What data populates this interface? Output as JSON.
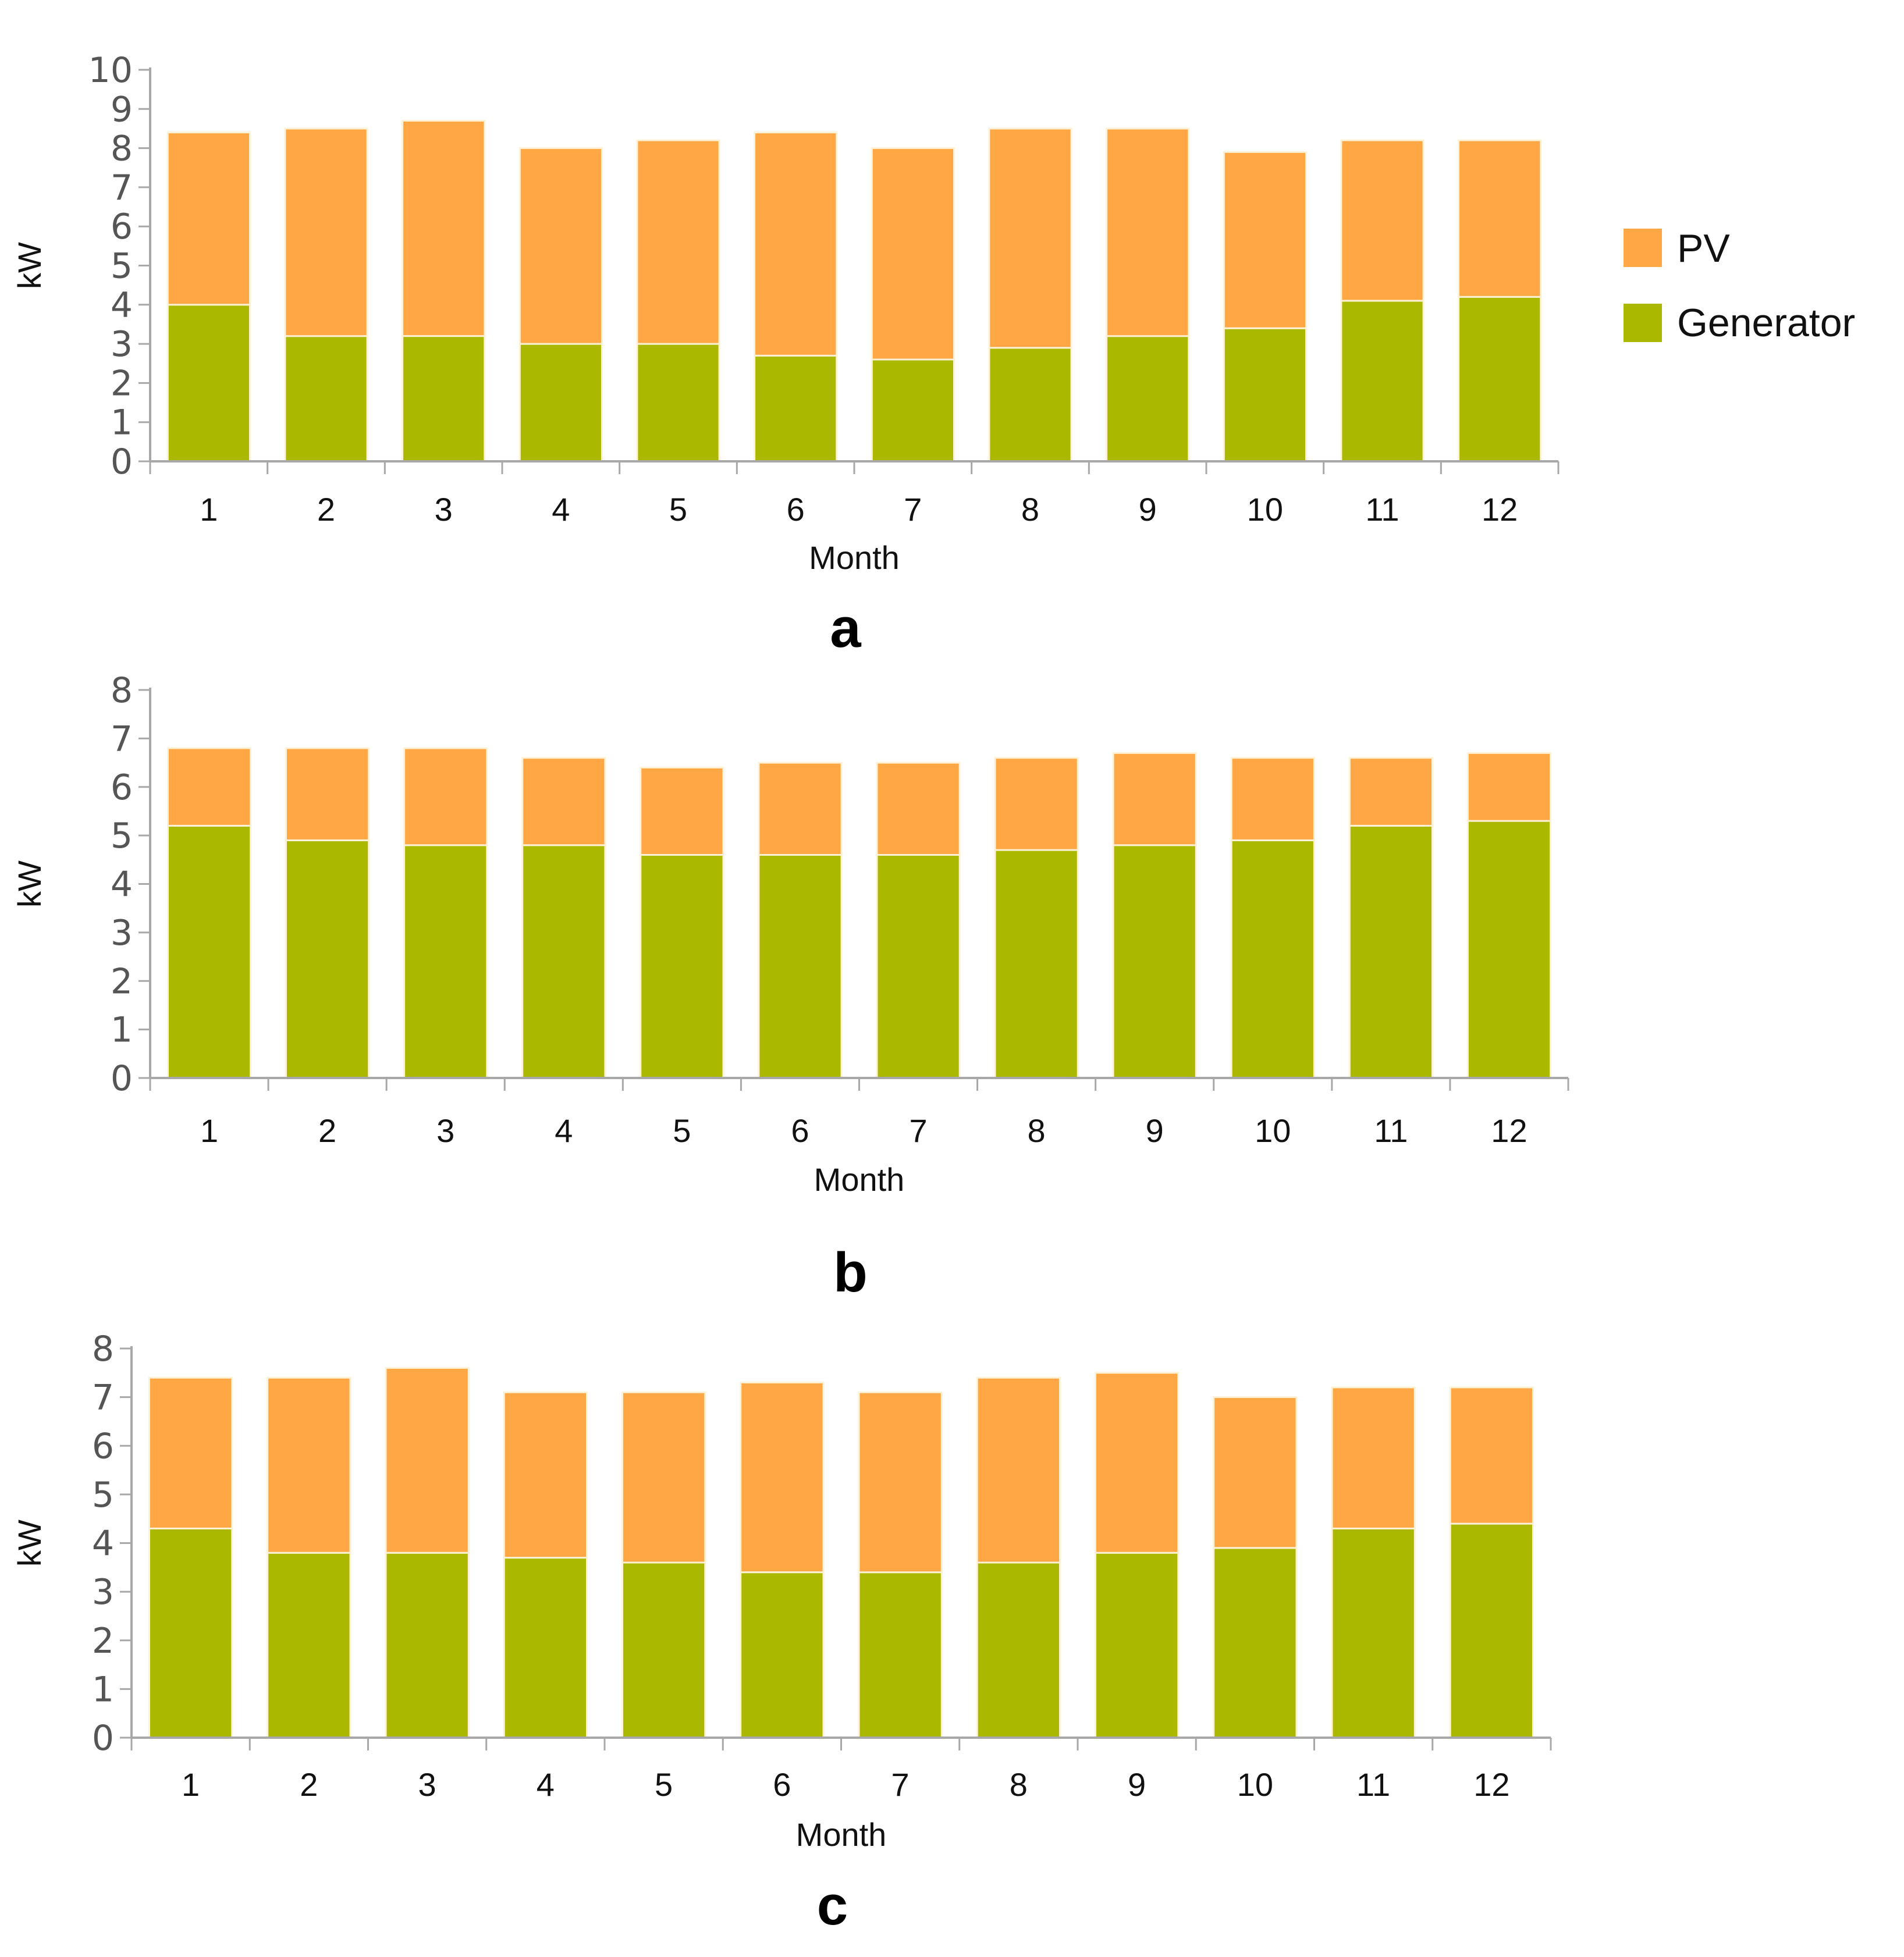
{
  "legend": [
    {
      "name": "PV",
      "color": "#FFA744"
    },
    {
      "name": "Generator",
      "color": "#AAB800"
    }
  ],
  "chart_data": [
    {
      "type": "bar",
      "stacked": true,
      "panel_label": "a",
      "xlabel": "Month",
      "ylabel": "kW",
      "ylim": [
        0,
        10
      ],
      "yticks": [
        0,
        1,
        2,
        3,
        4,
        5,
        6,
        7,
        8,
        9,
        10
      ],
      "categories": [
        "1",
        "2",
        "3",
        "4",
        "5",
        "6",
        "7",
        "8",
        "9",
        "10",
        "11",
        "12"
      ],
      "series": [
        {
          "name": "Generator",
          "values": [
            4.0,
            3.2,
            3.2,
            3.0,
            3.0,
            2.7,
            2.6,
            2.9,
            3.2,
            3.4,
            4.1,
            4.2
          ]
        },
        {
          "name": "PV",
          "values": [
            4.4,
            5.3,
            5.5,
            5.0,
            5.2,
            5.7,
            5.4,
            5.6,
            5.3,
            4.5,
            4.1,
            4.0
          ]
        }
      ]
    },
    {
      "type": "bar",
      "stacked": true,
      "panel_label": "b",
      "xlabel": "Month",
      "ylabel": "kW",
      "ylim": [
        0,
        8
      ],
      "yticks": [
        0,
        1,
        2,
        3,
        4,
        5,
        6,
        7,
        8
      ],
      "categories": [
        "1",
        "2",
        "3",
        "4",
        "5",
        "6",
        "7",
        "8",
        "9",
        "10",
        "11",
        "12"
      ],
      "series": [
        {
          "name": "Generator",
          "values": [
            5.2,
            4.9,
            4.8,
            4.8,
            4.6,
            4.6,
            4.6,
            4.7,
            4.8,
            4.9,
            5.2,
            5.3
          ]
        },
        {
          "name": "PV",
          "values": [
            1.6,
            1.9,
            2.0,
            1.8,
            1.8,
            1.9,
            1.9,
            1.9,
            1.9,
            1.7,
            1.4,
            1.4
          ]
        }
      ]
    },
    {
      "type": "bar",
      "stacked": true,
      "panel_label": "c",
      "xlabel": "Month",
      "ylabel": "kW",
      "ylim": [
        0,
        8
      ],
      "yticks": [
        0,
        1,
        2,
        3,
        4,
        5,
        6,
        7,
        8
      ],
      "categories": [
        "1",
        "2",
        "3",
        "4",
        "5",
        "6",
        "7",
        "8",
        "9",
        "10",
        "11",
        "12"
      ],
      "series": [
        {
          "name": "Generator",
          "values": [
            4.3,
            3.8,
            3.8,
            3.7,
            3.6,
            3.4,
            3.4,
            3.6,
            3.8,
            3.9,
            4.3,
            4.4
          ]
        },
        {
          "name": "PV",
          "values": [
            3.1,
            3.6,
            3.8,
            3.4,
            3.5,
            3.9,
            3.7,
            3.8,
            3.7,
            3.1,
            2.9,
            2.8
          ]
        }
      ]
    }
  ]
}
